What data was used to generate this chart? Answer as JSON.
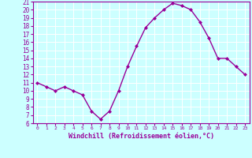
{
  "x": [
    0,
    1,
    2,
    3,
    4,
    5,
    6,
    7,
    8,
    9,
    10,
    11,
    12,
    13,
    14,
    15,
    16,
    17,
    18,
    19,
    20,
    21,
    22,
    23
  ],
  "y": [
    11,
    10.5,
    10,
    10.5,
    10,
    9.5,
    7.5,
    6.5,
    7.5,
    10,
    13,
    15.5,
    17.8,
    19,
    20,
    20.8,
    20.5,
    20,
    18.5,
    16.5,
    14,
    14,
    13,
    12
  ],
  "line_color": "#990099",
  "marker": "D",
  "marker_size": 2,
  "bg_color": "#ccffff",
  "grid_color": "#ffffff",
  "xlabel": "Windchill (Refroidissement éolien,°C)",
  "xlabel_color": "#990099",
  "tick_color": "#990099",
  "spine_color": "#990099",
  "ylim": [
    6,
    21
  ],
  "xlim": [
    -0.5,
    23.5
  ],
  "yticks": [
    6,
    7,
    8,
    9,
    10,
    11,
    12,
    13,
    14,
    15,
    16,
    17,
    18,
    19,
    20,
    21
  ],
  "xticks": [
    0,
    1,
    2,
    3,
    4,
    5,
    6,
    7,
    8,
    9,
    10,
    11,
    12,
    13,
    14,
    15,
    16,
    17,
    18,
    19,
    20,
    21,
    22,
    23
  ],
  "ytick_fontsize": 5.5,
  "xtick_fontsize": 4.5,
  "xlabel_fontsize": 6.0
}
